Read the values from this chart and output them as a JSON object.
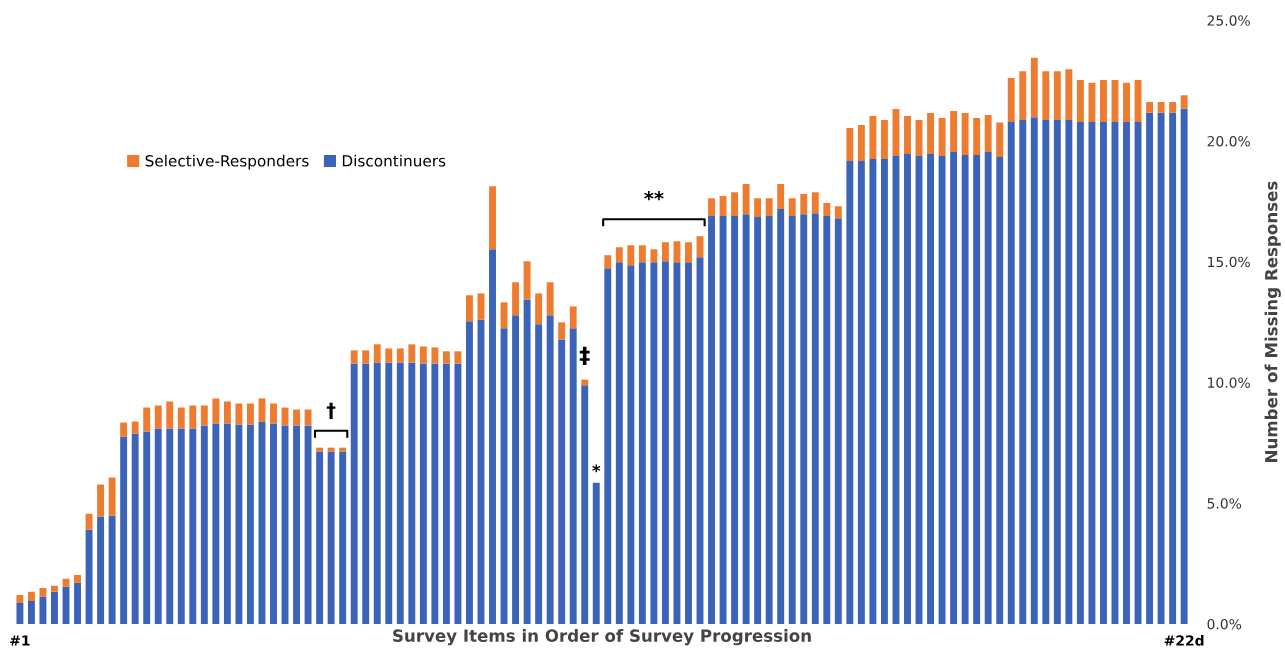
{
  "chart_data": {
    "type": "bar",
    "stacked": true,
    "xlabel": "Survey Items in Order of Survey Progression",
    "ylabel": "Number of Missing Responses",
    "categories": [
      "#1",
      null,
      null,
      null,
      null,
      null,
      null,
      null,
      null,
      null,
      null,
      null,
      null,
      null,
      null,
      null,
      null,
      null,
      null,
      null,
      null,
      null,
      null,
      null,
      null,
      null,
      null,
      null,
      null,
      null,
      null,
      null,
      null,
      null,
      null,
      null,
      null,
      null,
      null,
      null,
      null,
      null,
      null,
      null,
      null,
      null,
      null,
      null,
      null,
      null,
      null,
      null,
      null,
      null,
      null,
      null,
      null,
      null,
      null,
      null,
      null,
      null,
      null,
      null,
      null,
      null,
      null,
      null,
      null,
      null,
      null,
      null,
      null,
      null,
      null,
      null,
      null,
      null,
      null,
      null,
      null,
      null,
      null,
      null,
      null,
      null,
      null,
      null,
      null,
      null,
      null,
      null,
      null,
      null,
      null,
      null,
      null,
      null,
      null,
      null,
      null,
      "#22d"
    ],
    "series": [
      {
        "name": "Discontinuers",
        "color": "#3b64b9",
        "values": [
          0.87,
          0.95,
          1.12,
          1.33,
          1.54,
          1.7,
          3.9,
          4.44,
          4.48,
          7.76,
          7.88,
          7.97,
          8.09,
          8.09,
          8.09,
          8.09,
          8.22,
          8.3,
          8.3,
          8.26,
          8.26,
          8.38,
          8.3,
          8.22,
          8.22,
          8.22,
          7.14,
          7.14,
          7.14,
          10.79,
          10.79,
          10.83,
          10.83,
          10.83,
          10.83,
          10.79,
          10.79,
          10.79,
          10.79,
          12.53,
          12.61,
          15.52,
          12.24,
          12.78,
          13.44,
          12.41,
          12.78,
          11.78,
          12.24,
          9.88,
          5.85,
          14.73,
          14.98,
          14.85,
          14.98,
          14.98,
          15.02,
          14.98,
          14.98,
          15.19,
          16.89,
          16.89,
          16.89,
          16.97,
          16.85,
          16.89,
          17.18,
          16.89,
          16.97,
          17.01,
          16.89,
          16.8,
          19.17,
          19.17,
          19.25,
          19.25,
          19.38,
          19.46,
          19.38,
          19.46,
          19.38,
          19.54,
          19.42,
          19.42,
          19.54,
          19.34,
          20.79,
          20.87,
          20.98,
          20.87,
          20.87,
          20.87,
          20.79,
          20.79,
          20.79,
          20.79,
          20.79,
          20.79,
          21.17,
          21.17,
          21.17,
          21.34
        ]
      },
      {
        "name": "Selective-Responders",
        "color": "#ee7c30",
        "values": [
          0.33,
          0.38,
          0.37,
          0.25,
          0.33,
          0.33,
          0.66,
          1.33,
          1.58,
          0.58,
          0.5,
          0.99,
          0.96,
          1.12,
          0.87,
          0.96,
          0.83,
          1.04,
          0.91,
          0.87,
          0.87,
          0.96,
          0.83,
          0.74,
          0.66,
          0.66,
          0.16,
          0.16,
          0.16,
          0.54,
          0.54,
          0.75,
          0.58,
          0.58,
          0.75,
          0.7,
          0.66,
          0.5,
          0.5,
          1.08,
          1.08,
          2.61,
          1.08,
          1.37,
          1.58,
          1.28,
          1.37,
          0.71,
          0.91,
          0.24,
          0,
          0.54,
          0.62,
          0.83,
          0.7,
          0.54,
          0.79,
          0.87,
          0.83,
          0.87,
          0.74,
          0.83,
          0.99,
          1.25,
          0.78,
          0.74,
          1.04,
          0.74,
          0.83,
          0.87,
          0.54,
          0.5,
          1.37,
          1.49,
          1.79,
          1.62,
          1.95,
          1.58,
          1.49,
          1.7,
          1.57,
          1.7,
          1.74,
          1.53,
          1.54,
          1.43,
          1.82,
          2.02,
          2.47,
          2.02,
          2.02,
          2.1,
          1.74,
          1.62,
          1.74,
          1.74,
          1.62,
          1.74,
          0.45,
          0.45,
          0.45,
          0.55
        ]
      }
    ],
    "ylim": [
      0,
      25
    ],
    "yticks": [
      {
        "value": 0,
        "label": "0.0%"
      },
      {
        "value": 5,
        "label": "5.0%"
      },
      {
        "value": 10,
        "label": "10.0%"
      },
      {
        "value": 15,
        "label": "15.0%"
      },
      {
        "value": 20,
        "label": "20.0%"
      },
      {
        "value": 25,
        "label": "25.0%"
      }
    ],
    "legend": "top left",
    "annotations": [
      "†",
      "‡",
      "*",
      "**"
    ]
  }
}
